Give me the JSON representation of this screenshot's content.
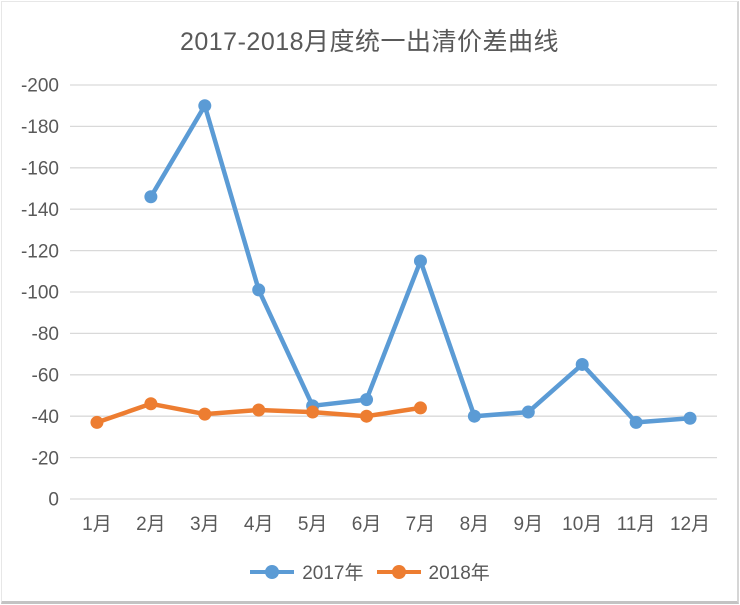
{
  "chart_data": {
    "type": "line",
    "title": "2017-2018月度统一出清价差曲线",
    "categories": [
      "1月",
      "2月",
      "3月",
      "4月",
      "5月",
      "6月",
      "7月",
      "8月",
      "9月",
      "10月",
      "11月",
      "12月"
    ],
    "series": [
      {
        "name": "2017年",
        "color": "#5B9BD5",
        "values": [
          null,
          -146,
          -190,
          -101,
          -45,
          -48,
          -115,
          -40,
          -42,
          -65,
          -37,
          -39
        ]
      },
      {
        "name": "2018年",
        "color": "#ED7D31",
        "values": [
          -37,
          -46,
          -41,
          -43,
          -42,
          -40,
          -44,
          null,
          null,
          null,
          null,
          null
        ]
      }
    ],
    "xlabel": "",
    "ylabel": "",
    "y_ticks": [
      -200,
      -180,
      -160,
      -140,
      -120,
      -100,
      -80,
      -60,
      -40,
      -20,
      0
    ],
    "y_axis_top_value": -200,
    "y_axis_bottom_value": 0,
    "y_axis_inverted": true,
    "grid": true,
    "legend_position": "bottom",
    "colors": {
      "title_text": "#595959",
      "axis_text": "#595959",
      "gridline": "#d9d9d9",
      "background": "#ffffff"
    }
  }
}
